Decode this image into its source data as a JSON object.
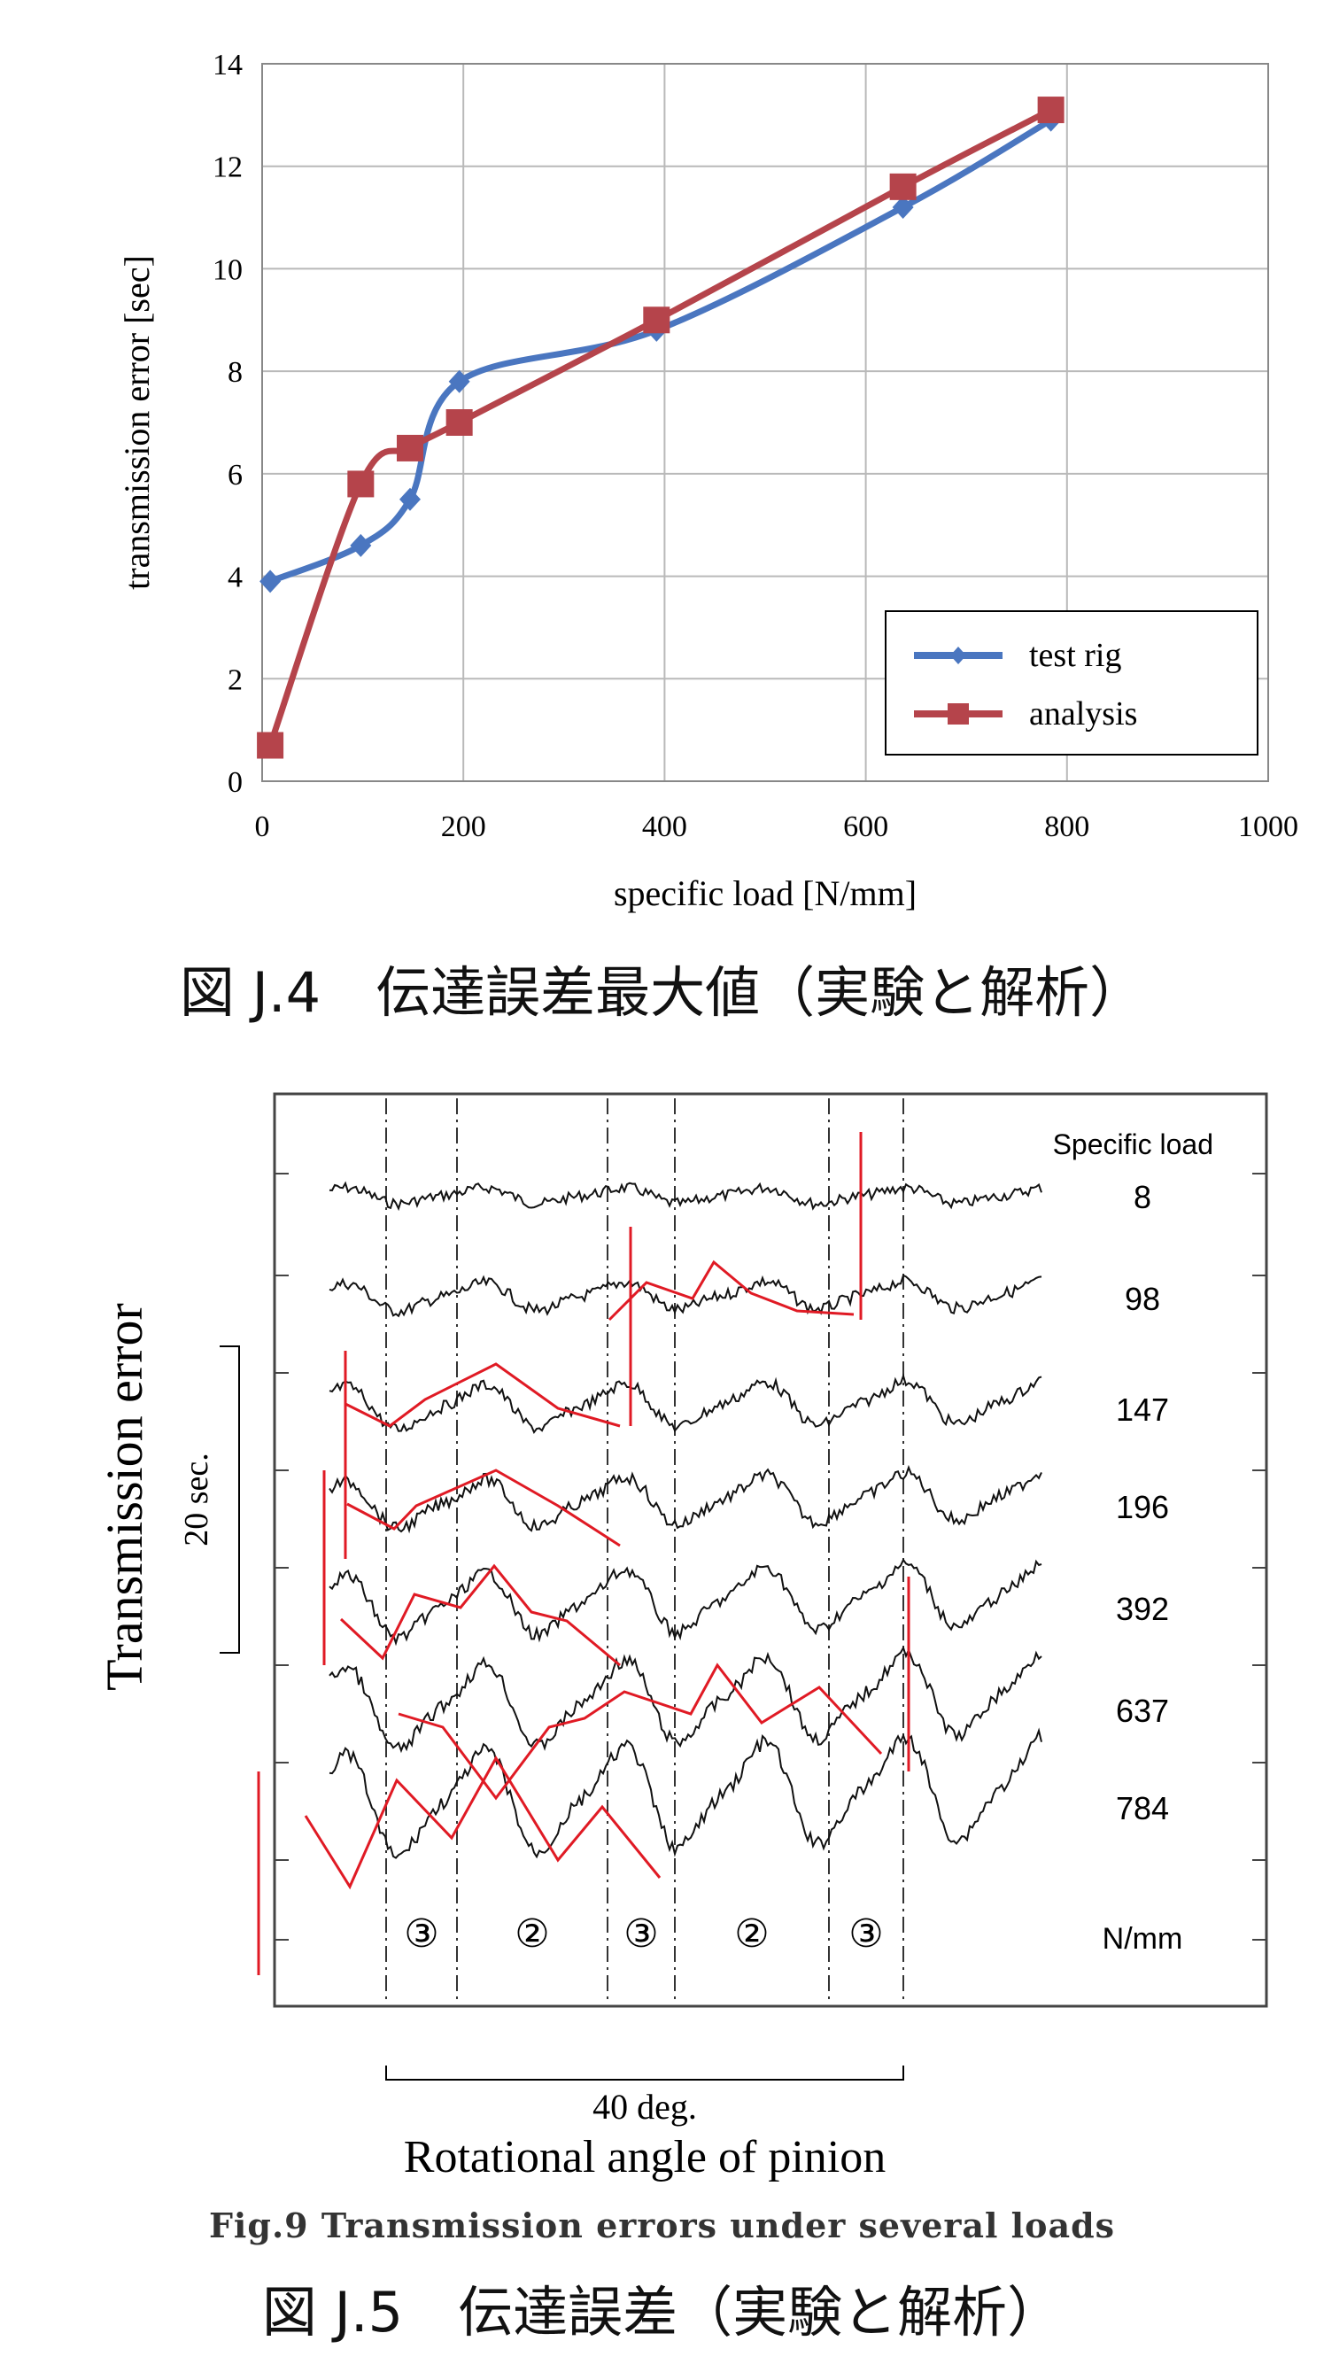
{
  "captions": {
    "fig_j4": "図 J.4　伝達誤差最大値（実験と解析）",
    "fig_j5": "図 J.5　伝達誤差（実験と解析）"
  },
  "chart_data": [
    {
      "type": "line",
      "xlabel": "specific load [N/mm]",
      "ylabel": "transmission error [sec]",
      "xlim": [
        0,
        1000
      ],
      "ylim": [
        0,
        14
      ],
      "xticks": [
        0,
        200,
        400,
        600,
        800,
        1000
      ],
      "yticks": [
        0,
        2,
        4,
        6,
        8,
        10,
        12,
        14
      ],
      "grid": true,
      "legend_position": "bottom-right",
      "series": [
        {
          "name": "test rig",
          "color": "#4a76c0",
          "marker": "diamond",
          "x": [
            8,
            98,
            147,
            196,
            392,
            637,
            784
          ],
          "y": [
            3.9,
            4.6,
            5.5,
            7.8,
            8.8,
            11.2,
            12.9
          ]
        },
        {
          "name": "analysis",
          "color": "#b5444b",
          "marker": "square",
          "x": [
            8,
            98,
            147,
            196,
            392,
            637,
            784
          ],
          "y": [
            0.7,
            5.8,
            6.5,
            7.0,
            9.0,
            11.6,
            13.1
          ]
        }
      ]
    },
    {
      "type": "line",
      "ylabel": "Transmission error",
      "xlabel": "Rotational angle of pinion",
      "title": "Fig.9    Transmission errors under several loads",
      "legend_header": "Specific load",
      "load_unit": "N/mm",
      "scale_bar_label": "20  sec.",
      "angle_bar_label": "40  deg.",
      "loads": [
        "8",
        "98",
        "147",
        "196",
        "392",
        "637",
        "784"
      ],
      "contact_zones": [
        "③",
        "②",
        "③",
        "②",
        "③"
      ]
    }
  ]
}
